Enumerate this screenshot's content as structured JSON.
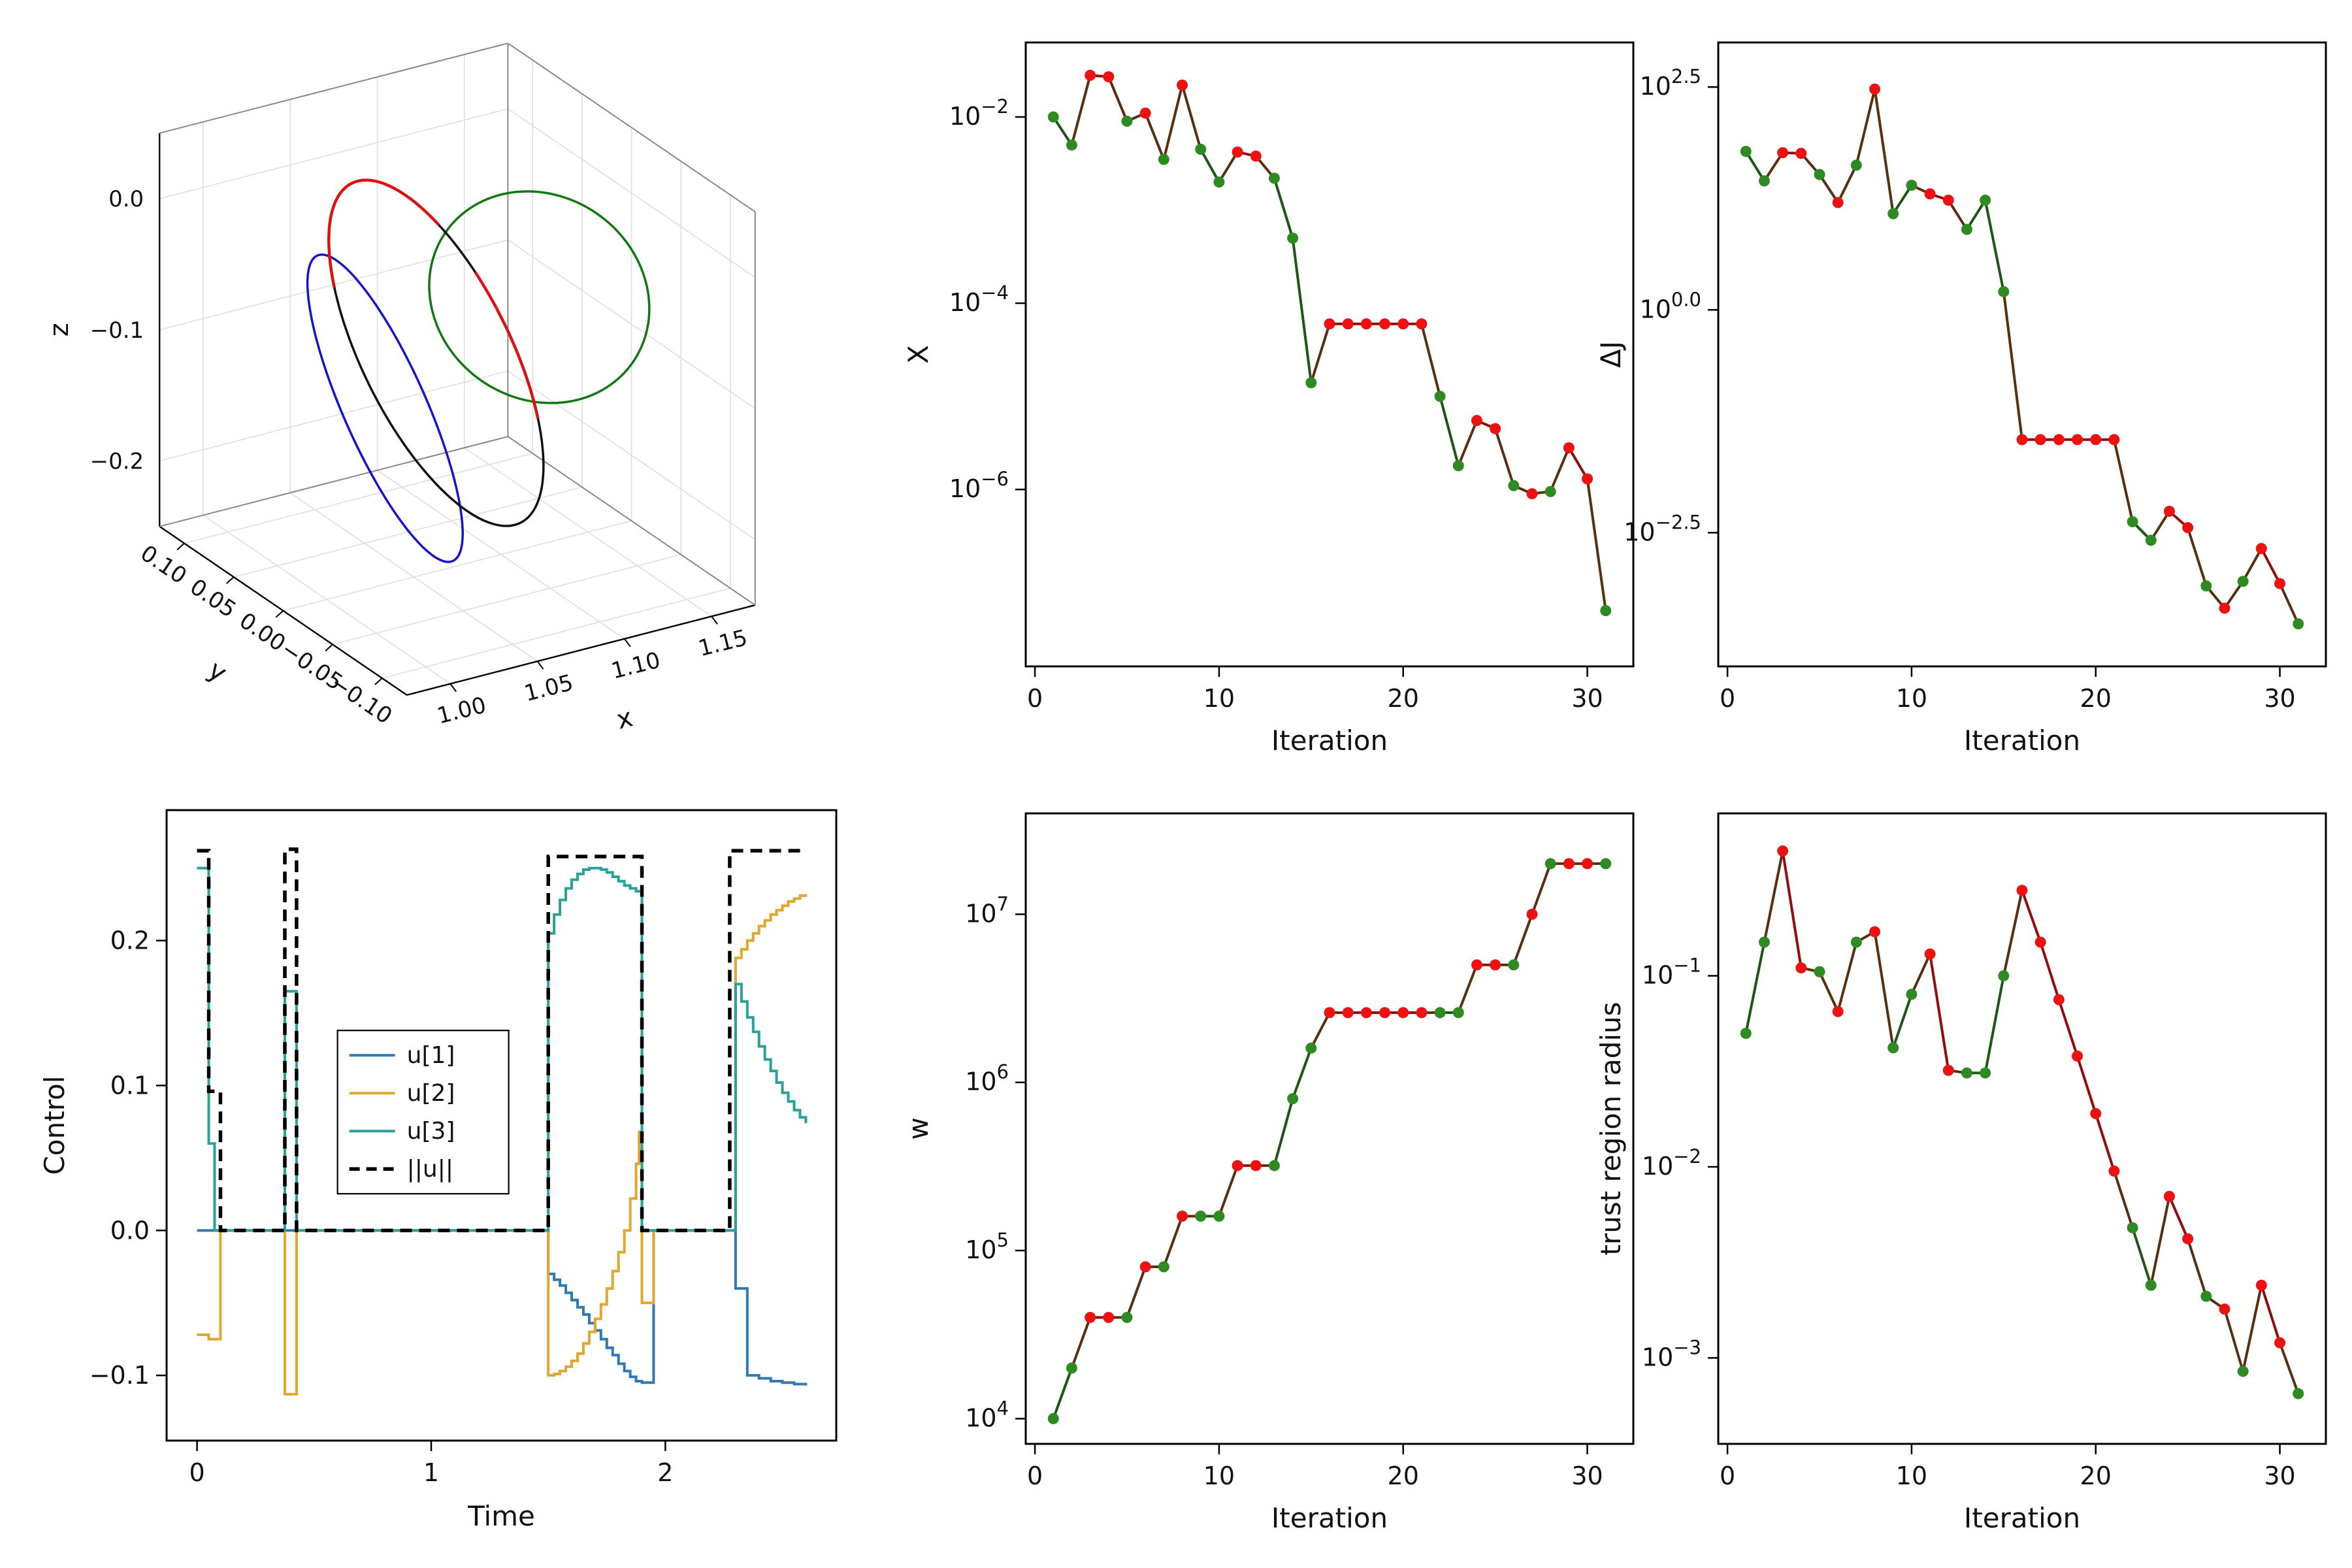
{
  "colors": {
    "accept": "#2e8b22",
    "reject": "#ee1111",
    "u1": "#3079b5",
    "u2": "#e0a62e",
    "u3": "#2aa198",
    "unorm": "#000000",
    "orbit_initial": "#1414cc",
    "orbit_target": "#117711",
    "orbit_transfer": "#111111",
    "orbit_thrust": "#dd1111",
    "axis": "#000000",
    "grid3d": "#dedede",
    "edge3d": "#888888"
  },
  "iterations": {
    "x": [
      1,
      2,
      3,
      4,
      5,
      6,
      7,
      8,
      9,
      10,
      11,
      12,
      13,
      14,
      15,
      16,
      17,
      18,
      19,
      20,
      21,
      22,
      23,
      24,
      25,
      26,
      27,
      28,
      29,
      30,
      31
    ],
    "accepted": [
      true,
      true,
      false,
      false,
      true,
      false,
      true,
      false,
      true,
      true,
      false,
      false,
      true,
      true,
      true,
      false,
      false,
      false,
      false,
      false,
      false,
      true,
      true,
      false,
      false,
      true,
      false,
      true,
      false,
      false,
      true
    ]
  },
  "chart_data": [
    {
      "id": "orbit3d",
      "type": "3d-trajectory",
      "xlabel": "x",
      "ylabel": "y",
      "zlabel": "z",
      "xlim": [
        0.975,
        1.175
      ],
      "ylim": [
        -0.125,
        0.125
      ],
      "zlim": [
        -0.25,
        0.05
      ],
      "xticks": [
        {
          "v": 1.0,
          "label": "1.00"
        },
        {
          "v": 1.05,
          "label": "1.05"
        },
        {
          "v": 1.1,
          "label": "1.10"
        },
        {
          "v": 1.15,
          "label": "1.15"
        }
      ],
      "yticks": [
        {
          "v": 0.1,
          "label": "0.10"
        },
        {
          "v": 0.05,
          "label": "0.05"
        },
        {
          "v": 0.0,
          "label": "0.00"
        },
        {
          "v": -0.05,
          "label": "−0.05"
        },
        {
          "v": -0.1,
          "label": "−0.10"
        }
      ],
      "zticks": [
        {
          "v": 0.0,
          "label": "0.0"
        },
        {
          "v": -0.1,
          "label": "−0.1"
        },
        {
          "v": -0.2,
          "label": "−0.2"
        }
      ],
      "orbits": [
        {
          "name": "initial-orbit",
          "color_key": "orbit_initial",
          "center": [
            1.025,
            -0.015,
            -0.105
          ],
          "v1": [
            0.01,
            0.08,
            -0.01
          ],
          "v2": [
            -0.01,
            0.03,
            0.1
          ],
          "theta_deg": [
            0,
            360
          ],
          "width": 3.5
        },
        {
          "name": "target-orbit",
          "color_key": "orbit_target",
          "center": [
            1.105,
            -0.03,
            -0.04
          ],
          "v1": [
            0.04,
            -0.04,
            0.008
          ],
          "v2": [
            0.015,
            0.04,
            0.055
          ],
          "theta_deg": [
            0,
            360
          ],
          "width": 3.5
        },
        {
          "name": "transfer-trajectory",
          "color_key": "orbit_transfer",
          "center": [
            1.06,
            -0.005,
            -0.08
          ],
          "v1": [
            0.04,
            -0.02,
            -0.02
          ],
          "v2": [
            0.0,
            0.06,
            0.1
          ],
          "theta_deg": [
            0,
            360
          ],
          "width": 3.5
        },
        {
          "name": "thrust-arc-1",
          "color_key": "orbit_thrust",
          "center": [
            1.06,
            -0.005,
            -0.08
          ],
          "v1": [
            0.04,
            -0.02,
            -0.02
          ],
          "v2": [
            0.0,
            0.06,
            0.1
          ],
          "theta_deg": [
            55,
            165
          ],
          "width": 4.5
        },
        {
          "name": "thrust-arc-2",
          "color_key": "orbit_thrust",
          "center": [
            1.06,
            -0.005,
            -0.08
          ],
          "v1": [
            0.04,
            -0.02,
            -0.02
          ],
          "v2": [
            0.0,
            0.06,
            0.1
          ],
          "theta_deg": [
            345,
            395
          ],
          "width": 4.5
        }
      ]
    },
    {
      "id": "defect",
      "type": "line",
      "xlabel": "Iteration",
      "ylabel": "X",
      "yscale": "log",
      "xlim": [
        -0.5,
        32.5
      ],
      "xticks": [
        {
          "v": 0,
          "label": "0"
        },
        {
          "v": 10,
          "label": "10"
        },
        {
          "v": 20,
          "label": "20"
        },
        {
          "v": 30,
          "label": "30"
        }
      ],
      "ytick_base": "10",
      "yticks": [
        {
          "e": -2,
          "label": "−2"
        },
        {
          "e": -4,
          "label": "−4"
        },
        {
          "e": -6,
          "label": "−6"
        }
      ],
      "ylim_exp": [
        -7.9,
        -1.2
      ],
      "values": [
        0.01,
        0.005,
        0.028,
        0.027,
        0.009,
        0.011,
        0.0035,
        0.022,
        0.0045,
        0.002,
        0.0042,
        0.0038,
        0.0022,
        0.0005,
        1.4e-05,
        6e-05,
        6e-05,
        6e-05,
        6e-05,
        6e-05,
        6e-05,
        1e-05,
        1.8e-06,
        5.5e-06,
        4.5e-06,
        1.1e-06,
        9e-07,
        9.5e-07,
        2.8e-06,
        1.3e-06,
        5e-08
      ]
    },
    {
      "id": "deltaj",
      "type": "line",
      "xlabel": "Iteration",
      "ylabel": "ΔJ",
      "yscale": "log",
      "xlim": [
        -0.5,
        32.5
      ],
      "xticks": [
        {
          "v": 0,
          "label": "0"
        },
        {
          "v": 10,
          "label": "10"
        },
        {
          "v": 20,
          "label": "20"
        },
        {
          "v": 30,
          "label": "30"
        }
      ],
      "ytick_base": "10",
      "yticks": [
        {
          "e": 2.5,
          "label": "2.5"
        },
        {
          "e": 0,
          "label": "0.0"
        },
        {
          "e": -2.5,
          "label": "−2.5"
        }
      ],
      "ylim_exp": [
        -4.0,
        3.0
      ],
      "values": [
        60,
        28,
        58,
        57,
        33,
        16,
        42,
        300,
        12,
        25,
        20,
        17,
        8,
        17,
        1.6,
        0.035,
        0.035,
        0.035,
        0.035,
        0.035,
        0.035,
        0.0042,
        0.0026,
        0.0055,
        0.0036,
        0.0008,
        0.00045,
        0.0009,
        0.0021,
        0.00085,
        0.0003
      ]
    },
    {
      "id": "control",
      "type": "step",
      "xlabel": "Time",
      "ylabel": "Control",
      "xlim": [
        -0.13,
        2.73
      ],
      "ylim": [
        -0.145,
        0.29
      ],
      "xticks": [
        {
          "v": 0,
          "label": "0"
        },
        {
          "v": 1,
          "label": "1"
        },
        {
          "v": 2,
          "label": "2"
        }
      ],
      "yticks": [
        {
          "v": -0.1,
          "label": "−0.1"
        },
        {
          "v": 0.0,
          "label": "0.0"
        },
        {
          "v": 0.1,
          "label": "0.1"
        },
        {
          "v": 0.2,
          "label": "0.2"
        }
      ],
      "legend": {
        "x": 0.6,
        "y": 0.138,
        "entries": [
          {
            "label": "u[1]",
            "key": "u1",
            "dash": false
          },
          {
            "label": "u[2]",
            "key": "u2",
            "dash": false
          },
          {
            "label": "u[3]",
            "key": "u3",
            "dash": false
          },
          {
            "label": "||u||",
            "key": "unorm",
            "dash": true
          }
        ]
      },
      "series": [
        {
          "name": "u1",
          "color_key": "u1",
          "dash": false,
          "width": 4,
          "points": [
            [
              0.0,
              0.0
            ],
            [
              1.5,
              -0.03
            ],
            [
              1.525,
              -0.034
            ],
            [
              1.55,
              -0.038
            ],
            [
              1.575,
              -0.043
            ],
            [
              1.6,
              -0.048
            ],
            [
              1.625,
              -0.053
            ],
            [
              1.65,
              -0.058
            ],
            [
              1.675,
              -0.064
            ],
            [
              1.7,
              -0.069
            ],
            [
              1.725,
              -0.075
            ],
            [
              1.75,
              -0.081
            ],
            [
              1.775,
              -0.086
            ],
            [
              1.8,
              -0.092
            ],
            [
              1.825,
              -0.097
            ],
            [
              1.85,
              -0.101
            ],
            [
              1.875,
              -0.104
            ],
            [
              1.9,
              -0.105
            ],
            [
              1.95,
              0.0
            ],
            [
              2.3,
              -0.04
            ],
            [
              2.35,
              -0.1
            ],
            [
              2.4,
              -0.102
            ],
            [
              2.45,
              -0.104
            ],
            [
              2.5,
              -0.105
            ],
            [
              2.55,
              -0.106
            ],
            [
              2.6,
              -0.107
            ]
          ]
        },
        {
          "name": "u2",
          "color_key": "u2",
          "dash": false,
          "width": 4,
          "points": [
            [
              0.0,
              -0.072
            ],
            [
              0.05,
              -0.075
            ],
            [
              0.1,
              0.0
            ],
            [
              0.375,
              -0.113
            ],
            [
              0.425,
              0.0
            ],
            [
              1.5,
              -0.1
            ],
            [
              1.525,
              -0.099
            ],
            [
              1.55,
              -0.097
            ],
            [
              1.575,
              -0.094
            ],
            [
              1.6,
              -0.09
            ],
            [
              1.625,
              -0.085
            ],
            [
              1.65,
              -0.078
            ],
            [
              1.675,
              -0.07
            ],
            [
              1.7,
              -0.061
            ],
            [
              1.725,
              -0.051
            ],
            [
              1.75,
              -0.04
            ],
            [
              1.775,
              -0.028
            ],
            [
              1.8,
              -0.015
            ],
            [
              1.825,
              0.0
            ],
            [
              1.85,
              0.022
            ],
            [
              1.875,
              0.046
            ],
            [
              1.888,
              0.068
            ],
            [
              1.9,
              -0.05
            ],
            [
              1.95,
              0.0
            ],
            [
              2.3,
              0.188
            ],
            [
              2.325,
              0.194
            ],
            [
              2.35,
              0.2
            ],
            [
              2.375,
              0.205
            ],
            [
              2.4,
              0.21
            ],
            [
              2.425,
              0.214
            ],
            [
              2.45,
              0.218
            ],
            [
              2.475,
              0.221
            ],
            [
              2.5,
              0.224
            ],
            [
              2.525,
              0.227
            ],
            [
              2.55,
              0.229
            ],
            [
              2.575,
              0.231
            ],
            [
              2.6,
              0.232
            ]
          ]
        },
        {
          "name": "u3",
          "color_key": "u3",
          "dash": false,
          "width": 4,
          "points": [
            [
              0.0,
              0.25
            ],
            [
              0.05,
              0.06
            ],
            [
              0.075,
              0.0
            ],
            [
              0.375,
              0.165
            ],
            [
              0.425,
              0.0
            ],
            [
              1.5,
              0.205
            ],
            [
              1.525,
              0.218
            ],
            [
              1.55,
              0.228
            ],
            [
              1.575,
              0.236
            ],
            [
              1.6,
              0.242
            ],
            [
              1.625,
              0.246
            ],
            [
              1.65,
              0.249
            ],
            [
              1.675,
              0.25
            ],
            [
              1.7,
              0.25
            ],
            [
              1.725,
              0.249
            ],
            [
              1.75,
              0.247
            ],
            [
              1.775,
              0.244
            ],
            [
              1.8,
              0.241
            ],
            [
              1.825,
              0.238
            ],
            [
              1.85,
              0.236
            ],
            [
              1.875,
              0.234
            ],
            [
              1.9,
              0.0
            ],
            [
              2.3,
              0.17
            ],
            [
              2.325,
              0.158
            ],
            [
              2.35,
              0.147
            ],
            [
              2.375,
              0.137
            ],
            [
              2.4,
              0.127
            ],
            [
              2.425,
              0.118
            ],
            [
              2.45,
              0.11
            ],
            [
              2.475,
              0.102
            ],
            [
              2.5,
              0.095
            ],
            [
              2.525,
              0.089
            ],
            [
              2.55,
              0.083
            ],
            [
              2.575,
              0.078
            ],
            [
              2.6,
              0.074
            ]
          ]
        },
        {
          "name": "unorm",
          "color_key": "unorm",
          "dash": true,
          "width": 5.5,
          "points": [
            [
              0.0,
              0.262
            ],
            [
              0.05,
              0.096
            ],
            [
              0.1,
              0.0
            ],
            [
              0.375,
              0.263
            ],
            [
              0.425,
              0.0
            ],
            [
              1.5,
              0.258
            ],
            [
              1.9,
              0.0
            ],
            [
              2.275,
              0.262
            ],
            [
              2.6,
              0.262
            ]
          ]
        }
      ]
    },
    {
      "id": "weight",
      "type": "line",
      "xlabel": "Iteration",
      "ylabel": "w",
      "yscale": "log",
      "xlim": [
        -0.5,
        32.5
      ],
      "xticks": [
        {
          "v": 0,
          "label": "0"
        },
        {
          "v": 10,
          "label": "10"
        },
        {
          "v": 20,
          "label": "20"
        },
        {
          "v": 30,
          "label": "30"
        }
      ],
      "ytick_base": "10",
      "yticks": [
        {
          "e": 4,
          "label": "4"
        },
        {
          "e": 5,
          "label": "5"
        },
        {
          "e": 6,
          "label": "6"
        },
        {
          "e": 7,
          "label": "7"
        }
      ],
      "ylim_exp": [
        3.85,
        7.6
      ],
      "values": [
        10000.0,
        20000.0,
        40000.0,
        40000.0,
        40000.0,
        80000.0,
        80000.0,
        160000.0,
        160000.0,
        160000.0,
        320000.0,
        320000.0,
        320000.0,
        800000.0,
        1600000.0,
        2600000.0,
        2600000.0,
        2600000.0,
        2600000.0,
        2600000.0,
        2600000.0,
        2600000.0,
        2600000.0,
        5000000.0,
        5000000.0,
        5000000.0,
        10000000.0,
        20000000.0,
        20000000.0,
        20000000.0,
        20000000.0
      ]
    },
    {
      "id": "trust",
      "type": "line",
      "xlabel": "Iteration",
      "ylabel": "trust region radius",
      "yscale": "log",
      "xlim": [
        -0.5,
        32.5
      ],
      "xticks": [
        {
          "v": 0,
          "label": "0"
        },
        {
          "v": 10,
          "label": "10"
        },
        {
          "v": 20,
          "label": "20"
        },
        {
          "v": 30,
          "label": "30"
        }
      ],
      "ytick_base": "10",
      "yticks": [
        {
          "e": -1,
          "label": "−1"
        },
        {
          "e": -2,
          "label": "−2"
        },
        {
          "e": -3,
          "label": "−3"
        }
      ],
      "ylim_exp": [
        -3.45,
        -0.15
      ],
      "values": [
        0.05,
        0.15,
        0.45,
        0.11,
        0.105,
        0.065,
        0.15,
        0.17,
        0.042,
        0.08,
        0.13,
        0.032,
        0.031,
        0.031,
        0.1,
        0.28,
        0.15,
        0.075,
        0.038,
        0.019,
        0.0095,
        0.0048,
        0.0024,
        0.007,
        0.0042,
        0.0021,
        0.0018,
        0.00085,
        0.0024,
        0.0012,
        0.00065
      ]
    }
  ]
}
